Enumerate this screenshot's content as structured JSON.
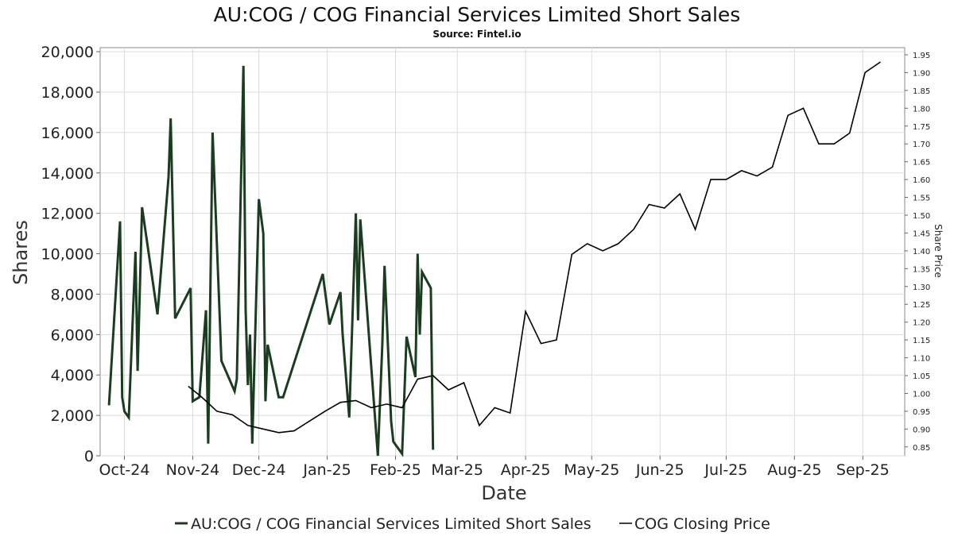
{
  "colors": {
    "short_sales": "#1b3d1f",
    "closing_price": "#000000",
    "grid": "#dcdcdc",
    "background": "#ffffff"
  },
  "chart_data": {
    "type": "line",
    "title": "AU:COG / COG Financial Services Limited Short Sales",
    "subtitle": "Source: Fintel.io",
    "xlabel": "Date",
    "ylabel": "Shares",
    "y2label": "Share Price",
    "xlim": [
      "2024-09-20",
      "2025-09-20"
    ],
    "ylim": [
      0,
      20200
    ],
    "y2lim": [
      0.825,
      1.97
    ],
    "grid": true,
    "legend_position": "bottom",
    "x_ticks": [
      {
        "date": "2024-10-01",
        "label": "Oct-24"
      },
      {
        "date": "2024-11-01",
        "label": "Nov-24"
      },
      {
        "date": "2024-12-01",
        "label": "Dec-24"
      },
      {
        "date": "2025-01-01",
        "label": "Jan-25"
      },
      {
        "date": "2025-02-01",
        "label": "Feb-25"
      },
      {
        "date": "2025-03-01",
        "label": "Mar-25"
      },
      {
        "date": "2025-04-01",
        "label": "Apr-25"
      },
      {
        "date": "2025-05-01",
        "label": "May-25"
      },
      {
        "date": "2025-06-01",
        "label": "Jun-25"
      },
      {
        "date": "2025-07-01",
        "label": "Jul-25"
      },
      {
        "date": "2025-08-01",
        "label": "Aug-25"
      },
      {
        "date": "2025-09-01",
        "label": "Sep-25"
      }
    ],
    "y_ticks": [
      0,
      2000,
      4000,
      6000,
      8000,
      10000,
      12000,
      14000,
      16000,
      18000,
      20000
    ],
    "y_tick_labels": [
      "0",
      "2,000",
      "4,000",
      "6,000",
      "8,000",
      "10,000",
      "12,000",
      "14,000",
      "16,000",
      "18,000",
      "20,000"
    ],
    "y2_ticks": [
      0.85,
      0.9,
      0.95,
      1.0,
      1.05,
      1.1,
      1.15,
      1.2,
      1.25,
      1.3,
      1.35,
      1.4,
      1.45,
      1.5,
      1.55,
      1.6,
      1.65,
      1.7,
      1.75,
      1.8,
      1.85,
      1.9,
      1.95
    ],
    "y2_tick_labels": [
      "0.85",
      "0.90",
      "0.95",
      "1.00",
      "1.05",
      "1.10",
      "1.15",
      "1.20",
      "1.25",
      "1.30",
      "1.35",
      "1.40",
      "1.45",
      "1.50",
      "1.55",
      "1.60",
      "1.65",
      "1.70",
      "1.75",
      "1.80",
      "1.85",
      "1.90",
      "1.95"
    ],
    "series": [
      {
        "name": "AU:COG / COG Financial Services Limited Short Sales",
        "axis": "left",
        "color": "#1b3d1f",
        "points": [
          {
            "x": "2024-09-24",
            "y": 2500
          },
          {
            "x": "2024-09-29",
            "y": 11600
          },
          {
            "x": "2024-09-30",
            "y": 2900
          },
          {
            "x": "2024-10-01",
            "y": 2200
          },
          {
            "x": "2024-10-03",
            "y": 1900
          },
          {
            "x": "2024-10-06",
            "y": 10100
          },
          {
            "x": "2024-10-07",
            "y": 4200
          },
          {
            "x": "2024-10-09",
            "y": 12300
          },
          {
            "x": "2024-10-16",
            "y": 7000
          },
          {
            "x": "2024-10-21",
            "y": 13800
          },
          {
            "x": "2024-10-22",
            "y": 16700
          },
          {
            "x": "2024-10-24",
            "y": 6800
          },
          {
            "x": "2024-10-31",
            "y": 8300
          },
          {
            "x": "2024-11-01",
            "y": 2700
          },
          {
            "x": "2024-11-04",
            "y": 2900
          },
          {
            "x": "2024-11-07",
            "y": 7200
          },
          {
            "x": "2024-11-08",
            "y": 600
          },
          {
            "x": "2024-11-10",
            "y": 16000
          },
          {
            "x": "2024-11-14",
            "y": 4700
          },
          {
            "x": "2024-11-20",
            "y": 3200
          },
          {
            "x": "2024-11-21",
            "y": 3800
          },
          {
            "x": "2024-11-24",
            "y": 19300
          },
          {
            "x": "2024-11-25",
            "y": 7200
          },
          {
            "x": "2024-11-26",
            "y": 3500
          },
          {
            "x": "2024-11-27",
            "y": 6000
          },
          {
            "x": "2024-11-28",
            "y": 600
          },
          {
            "x": "2024-12-01",
            "y": 12700
          },
          {
            "x": "2024-12-03",
            "y": 11000
          },
          {
            "x": "2024-12-04",
            "y": 2700
          },
          {
            "x": "2024-12-05",
            "y": 5500
          },
          {
            "x": "2024-12-10",
            "y": 2900
          },
          {
            "x": "2024-12-12",
            "y": 2900
          },
          {
            "x": "2024-12-30",
            "y": 9000
          },
          {
            "x": "2025-01-02",
            "y": 6500
          },
          {
            "x": "2025-01-07",
            "y": 8100
          },
          {
            "x": "2025-01-08",
            "y": 6000
          },
          {
            "x": "2025-01-11",
            "y": 1900
          },
          {
            "x": "2025-01-14",
            "y": 12000
          },
          {
            "x": "2025-01-15",
            "y": 6700
          },
          {
            "x": "2025-01-16",
            "y": 11700
          },
          {
            "x": "2025-01-24",
            "y": 0
          },
          {
            "x": "2025-01-26",
            "y": 5500
          },
          {
            "x": "2025-01-27",
            "y": 9400
          },
          {
            "x": "2025-01-30",
            "y": 1700
          },
          {
            "x": "2025-01-31",
            "y": 700
          },
          {
            "x": "2025-02-04",
            "y": 100
          },
          {
            "x": "2025-02-06",
            "y": 5900
          },
          {
            "x": "2025-02-10",
            "y": 3900
          },
          {
            "x": "2025-02-11",
            "y": 10000
          },
          {
            "x": "2025-02-12",
            "y": 6000
          },
          {
            "x": "2025-02-13",
            "y": 9100
          },
          {
            "x": "2025-02-17",
            "y": 8300
          },
          {
            "x": "2025-02-18",
            "y": 300
          }
        ]
      },
      {
        "name": "COG Closing Price",
        "axis": "right",
        "color": "#000000",
        "points": [
          {
            "x": "2024-10-30",
            "y": 1.02
          },
          {
            "x": "2024-11-05",
            "y": 0.99
          },
          {
            "x": "2024-11-12",
            "y": 0.95
          },
          {
            "x": "2024-11-19",
            "y": 0.94
          },
          {
            "x": "2024-11-26",
            "y": 0.91
          },
          {
            "x": "2024-12-03",
            "y": 0.9
          },
          {
            "x": "2024-12-10",
            "y": 0.89
          },
          {
            "x": "2024-12-17",
            "y": 0.895
          },
          {
            "x": "2024-12-31",
            "y": 0.95
          },
          {
            "x": "2025-01-07",
            "y": 0.975
          },
          {
            "x": "2025-01-14",
            "y": 0.98
          },
          {
            "x": "2025-01-21",
            "y": 0.96
          },
          {
            "x": "2025-01-28",
            "y": 0.97
          },
          {
            "x": "2025-02-04",
            "y": 0.96
          },
          {
            "x": "2025-02-11",
            "y": 1.04
          },
          {
            "x": "2025-02-18",
            "y": 1.05
          },
          {
            "x": "2025-02-25",
            "y": 1.01
          },
          {
            "x": "2025-03-04",
            "y": 1.03
          },
          {
            "x": "2025-03-11",
            "y": 0.91
          },
          {
            "x": "2025-03-18",
            "y": 0.96
          },
          {
            "x": "2025-03-25",
            "y": 0.945
          },
          {
            "x": "2025-04-01",
            "y": 1.23
          },
          {
            "x": "2025-04-08",
            "y": 1.14
          },
          {
            "x": "2025-04-15",
            "y": 1.15
          },
          {
            "x": "2025-04-22",
            "y": 1.39
          },
          {
            "x": "2025-04-29",
            "y": 1.42
          },
          {
            "x": "2025-05-06",
            "y": 1.4
          },
          {
            "x": "2025-05-13",
            "y": 1.42
          },
          {
            "x": "2025-05-20",
            "y": 1.46
          },
          {
            "x": "2025-05-27",
            "y": 1.53
          },
          {
            "x": "2025-06-03",
            "y": 1.52
          },
          {
            "x": "2025-06-10",
            "y": 1.56
          },
          {
            "x": "2025-06-17",
            "y": 1.46
          },
          {
            "x": "2025-06-24",
            "y": 1.6
          },
          {
            "x": "2025-07-01",
            "y": 1.6
          },
          {
            "x": "2025-07-08",
            "y": 1.625
          },
          {
            "x": "2025-07-15",
            "y": 1.61
          },
          {
            "x": "2025-07-22",
            "y": 1.635
          },
          {
            "x": "2025-07-29",
            "y": 1.78
          },
          {
            "x": "2025-08-05",
            "y": 1.8
          },
          {
            "x": "2025-08-12",
            "y": 1.7
          },
          {
            "x": "2025-08-19",
            "y": 1.7
          },
          {
            "x": "2025-08-26",
            "y": 1.73
          },
          {
            "x": "2025-09-02",
            "y": 1.9
          },
          {
            "x": "2025-09-09",
            "y": 1.93
          }
        ]
      }
    ]
  }
}
